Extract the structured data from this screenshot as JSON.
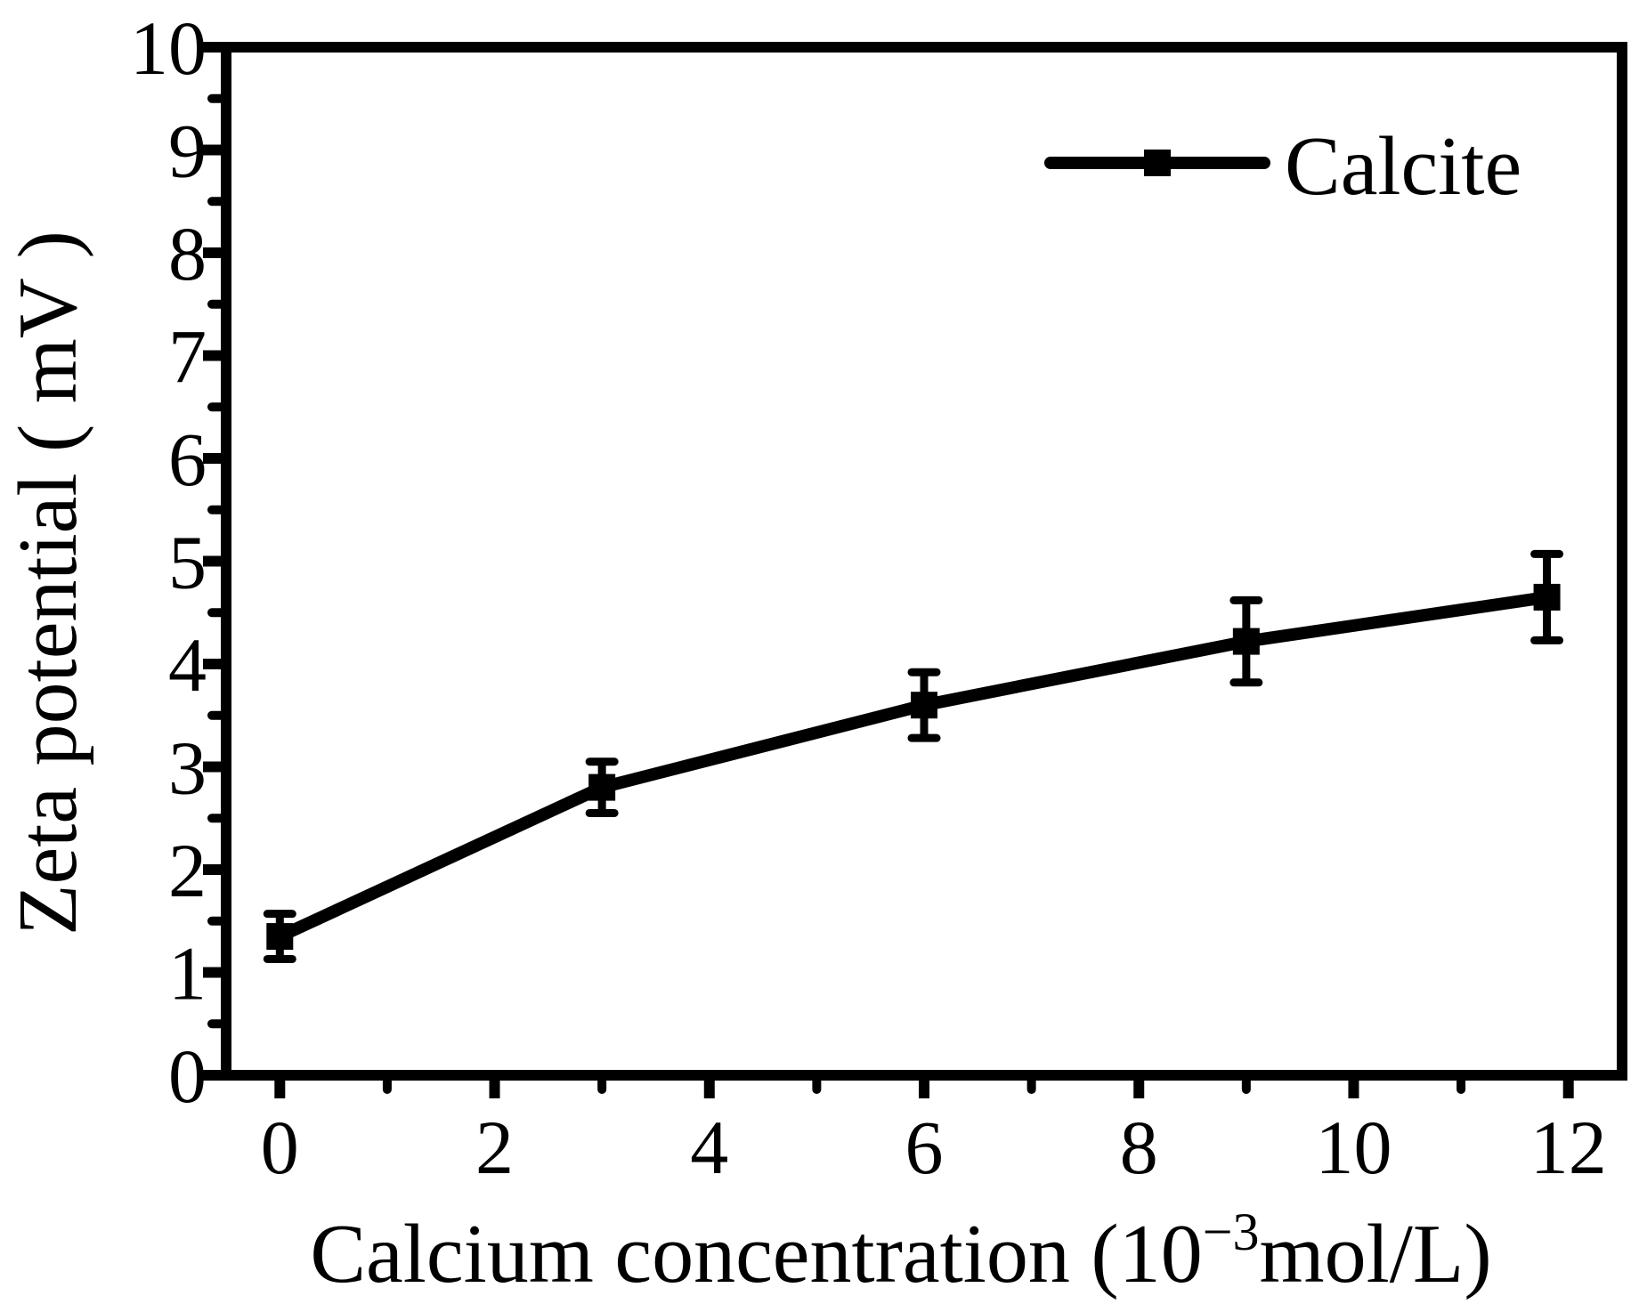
{
  "chart_data": {
    "type": "line",
    "title": "",
    "xlabel_main": "Calcium concentration (10",
    "xlabel_sup": "−3",
    "xlabel_end": "mol/L)",
    "ylabel": "Zeta potential ( mV )",
    "xlim": [
      -0.5,
      12.5
    ],
    "ylim": [
      0,
      10
    ],
    "x_ticks": [
      "0",
      "2",
      "4",
      "6",
      "8",
      "10",
      "12"
    ],
    "y_ticks": [
      "0",
      "1",
      "2",
      "3",
      "4",
      "5",
      "6",
      "7",
      "8",
      "9",
      "10"
    ],
    "x_tick_values": [
      0,
      2,
      4,
      6,
      8,
      10,
      12
    ],
    "y_tick_values": [
      0,
      1,
      2,
      3,
      4,
      5,
      6,
      7,
      8,
      9,
      10
    ],
    "legend_position": "top-right",
    "series": [
      {
        "name": "Calcite",
        "color": "#000000",
        "marker": "square",
        "x": [
          0,
          3,
          6,
          9,
          11.8
        ],
        "y": [
          1.35,
          2.8,
          3.6,
          4.22,
          4.65
        ],
        "yerr": [
          0.22,
          0.25,
          0.32,
          0.4,
          0.42
        ]
      }
    ]
  }
}
